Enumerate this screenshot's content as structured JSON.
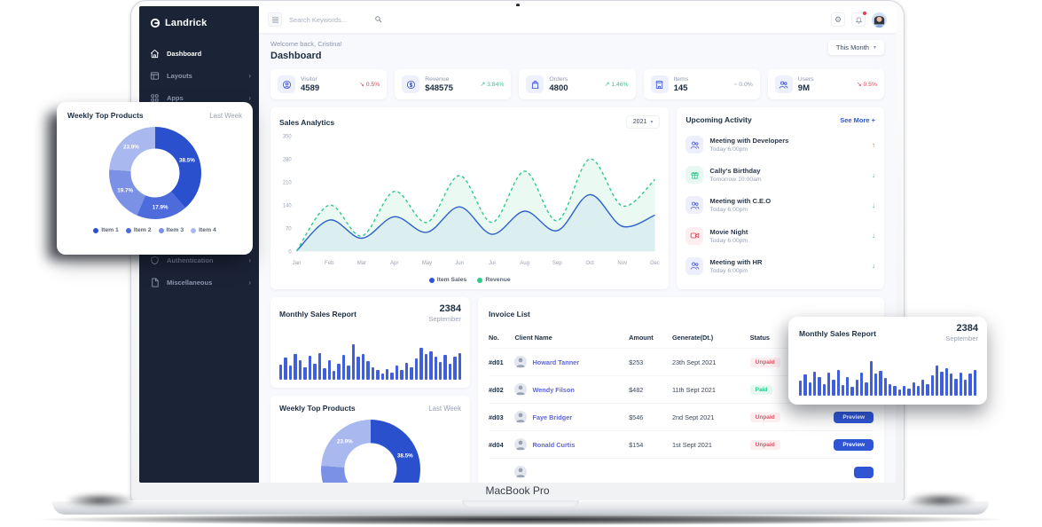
{
  "device": {
    "label": "MacBook Pro"
  },
  "brand": {
    "name": "Landrick"
  },
  "sidebar": {
    "items": [
      {
        "label": "Dashboard",
        "icon": "home-icon",
        "active": true,
        "chevron": false
      },
      {
        "label": "Layouts",
        "icon": "layout-icon",
        "active": false,
        "chevron": true
      },
      {
        "label": "Apps",
        "icon": "apps-grid-icon",
        "active": false,
        "chevron": true
      },
      {
        "label": "Authentication",
        "icon": "shield-icon",
        "active": false,
        "chevron": true
      },
      {
        "label": "Miscellaneous",
        "icon": "file-icon",
        "active": false,
        "chevron": true
      }
    ]
  },
  "topbar": {
    "search_placeholder": "Search Keywords...",
    "notification_dot": true
  },
  "page": {
    "welcome": "Welcome back, Cristina!",
    "title": "Dashboard",
    "period_selector": "This Month"
  },
  "stats": [
    {
      "label": "Visitor",
      "value": "4589",
      "delta": "0.5%",
      "trend": "down",
      "icon": "user-circle-icon"
    },
    {
      "label": "Revenue",
      "value": "$48575",
      "delta": "3.84%",
      "trend": "up",
      "icon": "dollar-icon"
    },
    {
      "label": "Orders",
      "value": "4800",
      "delta": "1.46%",
      "trend": "up",
      "icon": "bag-icon"
    },
    {
      "label": "Items",
      "value": "145",
      "delta": "0.0%",
      "trend": "flat",
      "icon": "store-icon"
    },
    {
      "label": "Users",
      "value": "9M",
      "delta": "0.5%",
      "trend": "down",
      "icon": "users-icon"
    }
  ],
  "activity": {
    "title": "Upcoming Activity",
    "see_more_label": "See More +",
    "items": [
      {
        "title": "Meeting with Developers",
        "time": "Today 6:00pm",
        "icon": "team-icon",
        "tint": "indigo",
        "direction": "up"
      },
      {
        "title": "Cally's Birthday",
        "time": "Tomorrow 10:00am",
        "icon": "gift-icon",
        "tint": "green",
        "direction": "down"
      },
      {
        "title": "Meeting with C.E.O",
        "time": "Today 6:00pm",
        "icon": "team-icon",
        "tint": "indigo",
        "direction": "down"
      },
      {
        "title": "Movie Night",
        "time": "Today 6:00pm",
        "icon": "video-icon",
        "tint": "red",
        "direction": "down"
      },
      {
        "title": "Meeting with HR",
        "time": "Today 6:00pm",
        "icon": "team-icon",
        "tint": "indigo",
        "direction": "down"
      }
    ]
  },
  "invoices": {
    "title": "Invoice List",
    "columns": [
      "No.",
      "Client Name",
      "Amount",
      "Generate(Dt.)",
      "Status",
      ""
    ],
    "rows": [
      {
        "no": "#d01",
        "client": "Howard Tanner",
        "amount": "$253",
        "date": "23th Sept 2021",
        "status": "Unpaid",
        "action": "Preview"
      },
      {
        "no": "#d02",
        "client": "Wendy Filson",
        "amount": "$482",
        "date": "11th Sept 2021",
        "status": "Paid",
        "action": "Preview"
      },
      {
        "no": "#d03",
        "client": "Faye Bridger",
        "amount": "$546",
        "date": "2nd Sept 2021",
        "status": "Unpaid",
        "action": "Preview"
      },
      {
        "no": "#d04",
        "client": "Ronald Curtis",
        "amount": "$154",
        "date": "1st Sept 2021",
        "status": "Unpaid",
        "action": "Preview"
      }
    ],
    "partial_fifth_row": true
  },
  "chart_data": [
    {
      "id": "sales_analytics",
      "type": "line",
      "title": "Sales Analytics",
      "year_selector": "2021",
      "x": [
        "Jan",
        "Feb",
        "Mar",
        "Apr",
        "May",
        "Jun",
        "Jul",
        "Aug",
        "Sep",
        "Oct",
        "Nov",
        "Dec"
      ],
      "series": [
        {
          "name": "Item Sales",
          "style": "solid",
          "color": "#2f55d4",
          "fill": "rgba(47,85,212,0.07)",
          "values": [
            2,
            95,
            40,
            105,
            58,
            135,
            52,
            122,
            63,
            172,
            76,
            110
          ]
        },
        {
          "name": "Revenue",
          "style": "dashed",
          "color": "#2eca8b",
          "fill": "rgba(46,202,139,0.10)",
          "values": [
            2,
            140,
            47,
            182,
            88,
            230,
            88,
            243,
            93,
            280,
            138,
            218
          ]
        }
      ],
      "ylim": [
        0,
        350
      ],
      "yticks": [
        0,
        70,
        140,
        210,
        280,
        350
      ],
      "grid": false,
      "legend_position": "bottom"
    },
    {
      "id": "monthly_sales",
      "type": "bar",
      "title": "Monthly Sales Report",
      "total": "2384",
      "subtitle": "September",
      "color": "#3f5fdc",
      "values": [
        38,
        55,
        34,
        62,
        48,
        30,
        58,
        40,
        66,
        28,
        48,
        22,
        40,
        60,
        34,
        88,
        56,
        64,
        46,
        30,
        24,
        16,
        26,
        18,
        34,
        24,
        42,
        30,
        52,
        78,
        62,
        70,
        56,
        44,
        60,
        40,
        56,
        66
      ]
    },
    {
      "id": "weekly_top_products",
      "type": "donut",
      "title": "Weekly Top Products",
      "period": "Last Week",
      "labels": [
        "Item 1",
        "Item 2",
        "Item 3",
        "Item 4"
      ],
      "values": [
        38.5,
        17.9,
        19.7,
        23.9
      ],
      "colors": [
        "#2b50ce",
        "#4d6bdb",
        "#7b91e6",
        "#a9b8ef"
      ]
    }
  ],
  "colors": {
    "primary": "#2f55d4",
    "success": "#2eca8b",
    "danger": "#e43f52",
    "warning": "#f17425",
    "sidebar_bg": "#1b2436",
    "page_bg": "#f8f9fc"
  }
}
